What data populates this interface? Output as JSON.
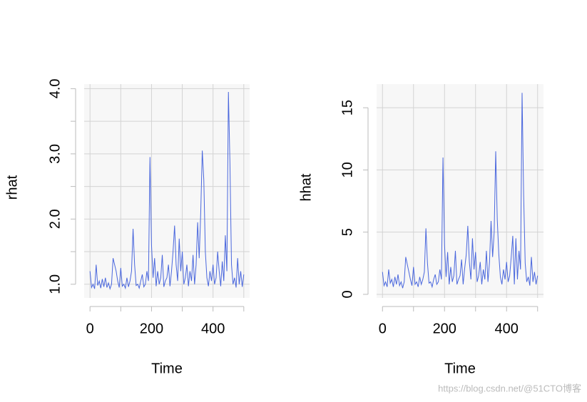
{
  "chart_data": [
    {
      "type": "line",
      "ylabel": "rhat",
      "xlabel": "Time",
      "color": "#4a67dd",
      "grid": true,
      "x": [
        0,
        5,
        10,
        15,
        20,
        25,
        30,
        35,
        40,
        45,
        50,
        55,
        60,
        65,
        70,
        75,
        80,
        85,
        90,
        95,
        100,
        105,
        110,
        115,
        120,
        125,
        130,
        135,
        140,
        145,
        150,
        155,
        160,
        165,
        170,
        175,
        180,
        185,
        190,
        195,
        200,
        205,
        210,
        215,
        220,
        225,
        230,
        235,
        240,
        245,
        250,
        255,
        260,
        265,
        270,
        275,
        280,
        285,
        290,
        295,
        300,
        305,
        310,
        315,
        320,
        325,
        330,
        335,
        340,
        345,
        350,
        355,
        360,
        365,
        370,
        375,
        380,
        385,
        390,
        395,
        400,
        405,
        410,
        415,
        420,
        425,
        430,
        435,
        440,
        445,
        450,
        455,
        460,
        465,
        470,
        475,
        480,
        485,
        490,
        495,
        500
      ],
      "values": [
        1.2,
        0.95,
        1.0,
        0.93,
        1.3,
        0.98,
        1.05,
        0.94,
        1.08,
        0.96,
        1.1,
        0.95,
        1.02,
        0.93,
        1.0,
        1.4,
        1.3,
        1.2,
        1.05,
        0.95,
        1.25,
        0.97,
        1.0,
        0.94,
        1.1,
        0.96,
        1.05,
        1.2,
        1.85,
        1.3,
        0.98,
        1.0,
        0.94,
        1.05,
        1.15,
        0.96,
        1.0,
        1.2,
        1.05,
        2.95,
        1.6,
        1.1,
        1.4,
        0.97,
        1.2,
        1.0,
        1.1,
        1.45,
        0.96,
        1.05,
        1.1,
        1.3,
        0.97,
        1.2,
        1.5,
        1.9,
        1.3,
        1.05,
        1.7,
        1.2,
        1.5,
        1.0,
        1.1,
        1.3,
        0.97,
        1.2,
        1.05,
        1.45,
        1.0,
        1.3,
        1.95,
        1.4,
        2.1,
        3.05,
        2.6,
        1.5,
        1.1,
        0.97,
        1.2,
        1.05,
        1.3,
        1.0,
        1.1,
        1.5,
        1.2,
        0.97,
        1.35,
        1.05,
        1.75,
        1.2,
        3.95,
        2.85,
        1.3,
        1.0,
        1.1,
        0.95,
        1.4,
        1.0,
        1.2,
        0.96,
        1.15
      ],
      "xlim": [
        -19,
        519
      ],
      "ylim": [
        0.79,
        4.07
      ],
      "xticks": [
        0,
        {
          "value": 100,
          "label": null
        },
        200,
        {
          "value": 300,
          "label": null
        },
        400,
        {
          "value": 500,
          "label": null
        }
      ],
      "yticks": [
        {
          "value": 1,
          "label": "1.0"
        },
        {
          "value": 1.5,
          "label": null
        },
        {
          "value": 2,
          "label": "2.0"
        },
        {
          "value": 2.5,
          "label": null
        },
        {
          "value": 3,
          "label": "3.0"
        },
        {
          "value": 3.5,
          "label": null
        },
        {
          "value": 4,
          "label": "4.0"
        }
      ]
    },
    {
      "type": "line",
      "ylabel": "hhat",
      "xlabel": "Time",
      "color": "#4a67dd",
      "grid": true,
      "x": [
        0,
        5,
        10,
        15,
        20,
        25,
        30,
        35,
        40,
        45,
        50,
        55,
        60,
        65,
        70,
        75,
        80,
        85,
        90,
        95,
        100,
        105,
        110,
        115,
        120,
        125,
        130,
        135,
        140,
        145,
        150,
        155,
        160,
        165,
        170,
        175,
        180,
        185,
        190,
        195,
        200,
        205,
        210,
        215,
        220,
        225,
        230,
        235,
        240,
        245,
        250,
        255,
        260,
        265,
        270,
        275,
        280,
        285,
        290,
        295,
        300,
        305,
        310,
        315,
        320,
        325,
        330,
        335,
        340,
        345,
        350,
        355,
        360,
        365,
        370,
        375,
        380,
        385,
        390,
        395,
        400,
        405,
        410,
        415,
        420,
        425,
        430,
        435,
        440,
        445,
        450,
        455,
        460,
        465,
        470,
        475,
        480,
        485,
        490,
        495,
        500
      ],
      "values": [
        1.8,
        0.7,
        1.0,
        0.6,
        2.0,
        0.9,
        1.2,
        0.6,
        1.4,
        0.8,
        1.6,
        0.7,
        1.0,
        0.5,
        1.0,
        3.0,
        2.4,
        1.8,
        1.2,
        0.7,
        2.2,
        0.8,
        1.0,
        0.6,
        1.4,
        0.8,
        1.2,
        1.8,
        5.3,
        2.5,
        0.9,
        1.0,
        0.6,
        1.2,
        1.6,
        0.8,
        1.0,
        2.0,
        1.2,
        11.0,
        4.0,
        1.4,
        3.4,
        0.8,
        2.2,
        1.0,
        1.5,
        3.5,
        0.8,
        1.2,
        1.5,
        2.8,
        0.8,
        2.1,
        3.2,
        5.5,
        2.6,
        1.2,
        4.5,
        2.0,
        3.4,
        1.0,
        1.5,
        2.6,
        0.8,
        2.0,
        1.2,
        3.5,
        1.0,
        2.6,
        5.9,
        3.0,
        5.0,
        11.5,
        6.0,
        3.2,
        1.4,
        0.8,
        2.0,
        1.2,
        2.6,
        1.0,
        1.5,
        3.0,
        4.7,
        0.8,
        4.5,
        1.2,
        3.5,
        2.0,
        16.2,
        8.0,
        2.5,
        1.0,
        1.4,
        0.7,
        3.0,
        1.0,
        1.8,
        0.8,
        1.5
      ],
      "xlim": [
        -19,
        519
      ],
      "ylim": [
        -0.29,
        16.9
      ],
      "xticks": [
        0,
        {
          "value": 100,
          "label": null
        },
        200,
        {
          "value": 300,
          "label": null
        },
        400,
        {
          "value": 500,
          "label": null
        }
      ],
      "yticks": [
        0,
        5,
        10,
        15
      ]
    }
  ],
  "watermark": "https://blog.csdn.net/@51CTO博客"
}
